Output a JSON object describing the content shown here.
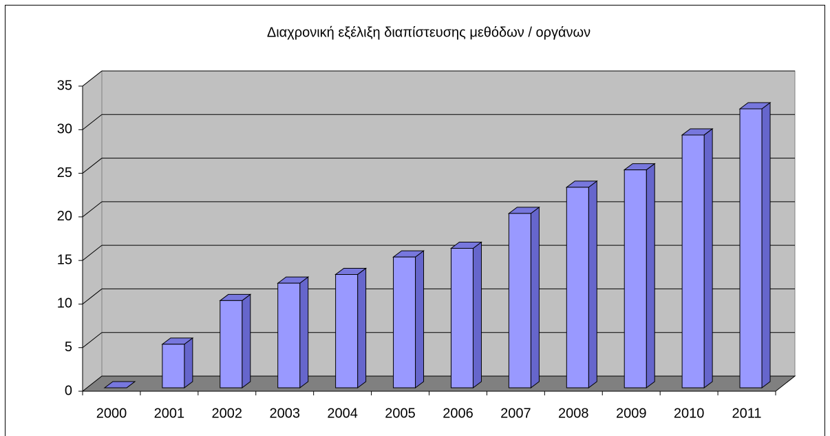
{
  "chart_data": {
    "type": "bar3d",
    "title": "Διαχρονική εξέλιξη διαπίστευσης μεθόδων / οργάνων",
    "categories": [
      "2000",
      "2001",
      "2002",
      "2003",
      "2004",
      "2005",
      "2006",
      "2007",
      "2008",
      "2009",
      "2010",
      "2011"
    ],
    "values": [
      0,
      5,
      10,
      12,
      13,
      15,
      16,
      20,
      23,
      25,
      29,
      32
    ],
    "color": "#9999ff",
    "ylim": [
      0,
      35
    ],
    "yticks": [
      0,
      5,
      10,
      15,
      20,
      25,
      30,
      35
    ],
    "grid": true
  }
}
